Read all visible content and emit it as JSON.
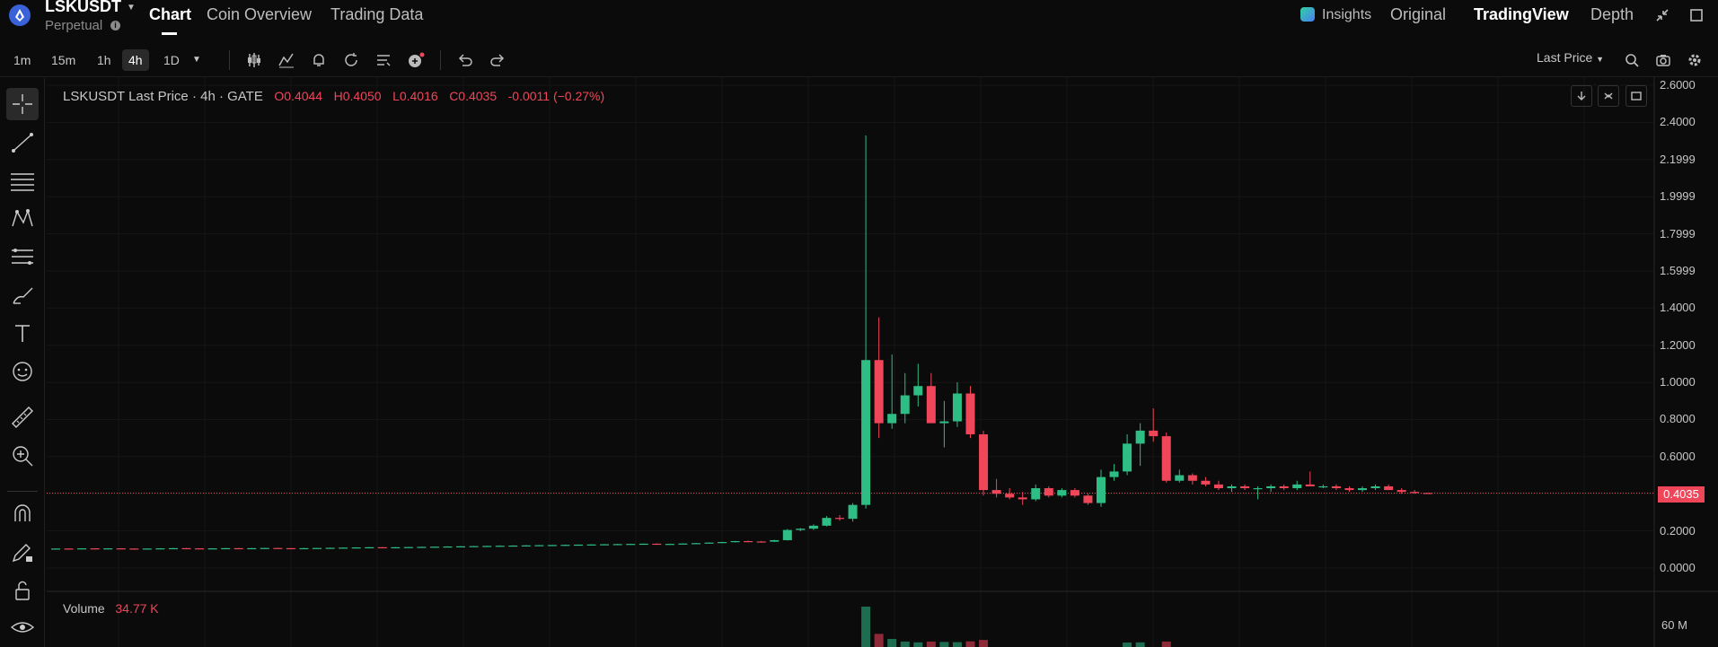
{
  "header": {
    "symbol": "LSKUSDT",
    "subtitle": "Perpetual",
    "tabs": [
      {
        "label": "Chart",
        "active": true
      },
      {
        "label": "Coin Overview",
        "active": false
      },
      {
        "label": "Trading Data",
        "active": false
      }
    ],
    "right_tabs": [
      {
        "label": "Insights",
        "active": false
      },
      {
        "label": "Original",
        "active": false
      },
      {
        "label": "TradingView",
        "active": true
      },
      {
        "label": "Depth",
        "active": false
      }
    ]
  },
  "toolbar": {
    "timeframes": [
      {
        "label": "1m",
        "active": false
      },
      {
        "label": "15m",
        "active": false
      },
      {
        "label": "1h",
        "active": false
      },
      {
        "label": "4h",
        "active": true
      },
      {
        "label": "1D",
        "active": false
      }
    ],
    "price_type": "Last Price"
  },
  "legend": {
    "title": "LSKUSDT Last Price · 4h · GATE",
    "open": "O0.4044",
    "high": "H0.4050",
    "low": "L0.4016",
    "close": "C0.4035",
    "change": "-0.0011 (−0.27%)"
  },
  "price_axis": [
    "2.6000",
    "2.4000",
    "2.1999",
    "1.9999",
    "1.7999",
    "1.5999",
    "1.4000",
    "1.2000",
    "1.0000",
    "0.8000",
    "0.6000",
    "0.4000",
    "0.2000",
    "0.0000"
  ],
  "current_price": "0.4035",
  "volume": {
    "label": "Volume",
    "value": "34.77 K",
    "axis_label": "60 M"
  },
  "colors": {
    "up": "#2ebd85",
    "down": "#f0465a",
    "background": "#0b0b0b"
  },
  "chart_data": {
    "type": "candlestick",
    "title": "LSKUSDT Last Price · 4h · GATE",
    "ylim": [
      0.0,
      2.6
    ],
    "grid": true,
    "candles": [
      {
        "o": 0.104,
        "h": 0.106,
        "l": 0.102,
        "c": 0.105
      },
      {
        "o": 0.105,
        "h": 0.106,
        "l": 0.103,
        "c": 0.104
      },
      {
        "o": 0.104,
        "h": 0.107,
        "l": 0.103,
        "c": 0.106
      },
      {
        "o": 0.106,
        "h": 0.107,
        "l": 0.104,
        "c": 0.105
      },
      {
        "o": 0.105,
        "h": 0.107,
        "l": 0.104,
        "c": 0.106
      },
      {
        "o": 0.106,
        "h": 0.107,
        "l": 0.104,
        "c": 0.105
      },
      {
        "o": 0.105,
        "h": 0.106,
        "l": 0.103,
        "c": 0.104
      },
      {
        "o": 0.104,
        "h": 0.106,
        "l": 0.103,
        "c": 0.105
      },
      {
        "o": 0.105,
        "h": 0.107,
        "l": 0.104,
        "c": 0.106
      },
      {
        "o": 0.106,
        "h": 0.108,
        "l": 0.105,
        "c": 0.107
      },
      {
        "o": 0.107,
        "h": 0.108,
        "l": 0.105,
        "c": 0.106
      },
      {
        "o": 0.106,
        "h": 0.107,
        "l": 0.104,
        "c": 0.105
      },
      {
        "o": 0.105,
        "h": 0.107,
        "l": 0.104,
        "c": 0.106
      },
      {
        "o": 0.106,
        "h": 0.108,
        "l": 0.105,
        "c": 0.107
      },
      {
        "o": 0.107,
        "h": 0.108,
        "l": 0.105,
        "c": 0.106
      },
      {
        "o": 0.106,
        "h": 0.108,
        "l": 0.105,
        "c": 0.107
      },
      {
        "o": 0.107,
        "h": 0.109,
        "l": 0.106,
        "c": 0.108
      },
      {
        "o": 0.108,
        "h": 0.109,
        "l": 0.106,
        "c": 0.107
      },
      {
        "o": 0.107,
        "h": 0.108,
        "l": 0.105,
        "c": 0.106
      },
      {
        "o": 0.106,
        "h": 0.108,
        "l": 0.105,
        "c": 0.107
      },
      {
        "o": 0.107,
        "h": 0.109,
        "l": 0.106,
        "c": 0.108
      },
      {
        "o": 0.108,
        "h": 0.11,
        "l": 0.107,
        "c": 0.109
      },
      {
        "o": 0.109,
        "h": 0.111,
        "l": 0.108,
        "c": 0.11
      },
      {
        "o": 0.11,
        "h": 0.112,
        "l": 0.108,
        "c": 0.111
      },
      {
        "o": 0.111,
        "h": 0.113,
        "l": 0.109,
        "c": 0.112
      },
      {
        "o": 0.112,
        "h": 0.113,
        "l": 0.11,
        "c": 0.111
      },
      {
        "o": 0.111,
        "h": 0.113,
        "l": 0.11,
        "c": 0.112
      },
      {
        "o": 0.112,
        "h": 0.114,
        "l": 0.111,
        "c": 0.113
      },
      {
        "o": 0.113,
        "h": 0.115,
        "l": 0.112,
        "c": 0.114
      },
      {
        "o": 0.114,
        "h": 0.116,
        "l": 0.112,
        "c": 0.115
      },
      {
        "o": 0.115,
        "h": 0.117,
        "l": 0.113,
        "c": 0.116
      },
      {
        "o": 0.116,
        "h": 0.118,
        "l": 0.114,
        "c": 0.117
      },
      {
        "o": 0.117,
        "h": 0.119,
        "l": 0.115,
        "c": 0.118
      },
      {
        "o": 0.118,
        "h": 0.12,
        "l": 0.116,
        "c": 0.119
      },
      {
        "o": 0.119,
        "h": 0.122,
        "l": 0.117,
        "c": 0.12
      },
      {
        "o": 0.12,
        "h": 0.122,
        "l": 0.118,
        "c": 0.121
      },
      {
        "o": 0.121,
        "h": 0.123,
        "l": 0.119,
        "c": 0.122
      },
      {
        "o": 0.122,
        "h": 0.124,
        "l": 0.12,
        "c": 0.123
      },
      {
        "o": 0.123,
        "h": 0.125,
        "l": 0.121,
        "c": 0.124
      },
      {
        "o": 0.124,
        "h": 0.126,
        "l": 0.122,
        "c": 0.125
      },
      {
        "o": 0.125,
        "h": 0.127,
        "l": 0.123,
        "c": 0.126
      },
      {
        "o": 0.126,
        "h": 0.128,
        "l": 0.124,
        "c": 0.127
      },
      {
        "o": 0.127,
        "h": 0.129,
        "l": 0.125,
        "c": 0.128
      },
      {
        "o": 0.128,
        "h": 0.13,
        "l": 0.126,
        "c": 0.129
      },
      {
        "o": 0.129,
        "h": 0.131,
        "l": 0.127,
        "c": 0.13
      },
      {
        "o": 0.13,
        "h": 0.132,
        "l": 0.128,
        "c": 0.131
      },
      {
        "o": 0.131,
        "h": 0.133,
        "l": 0.127,
        "c": 0.128
      },
      {
        "o": 0.128,
        "h": 0.131,
        "l": 0.126,
        "c": 0.13
      },
      {
        "o": 0.13,
        "h": 0.133,
        "l": 0.128,
        "c": 0.132
      },
      {
        "o": 0.132,
        "h": 0.135,
        "l": 0.13,
        "c": 0.134
      },
      {
        "o": 0.134,
        "h": 0.138,
        "l": 0.132,
        "c": 0.137
      },
      {
        "o": 0.137,
        "h": 0.141,
        "l": 0.134,
        "c": 0.14
      },
      {
        "o": 0.14,
        "h": 0.146,
        "l": 0.138,
        "c": 0.145
      },
      {
        "o": 0.145,
        "h": 0.148,
        "l": 0.141,
        "c": 0.143
      },
      {
        "o": 0.143,
        "h": 0.146,
        "l": 0.14,
        "c": 0.142
      },
      {
        "o": 0.142,
        "h": 0.152,
        "l": 0.14,
        "c": 0.15
      },
      {
        "o": 0.15,
        "h": 0.21,
        "l": 0.148,
        "c": 0.205
      },
      {
        "o": 0.205,
        "h": 0.215,
        "l": 0.198,
        "c": 0.212
      },
      {
        "o": 0.212,
        "h": 0.235,
        "l": 0.205,
        "c": 0.228
      },
      {
        "o": 0.228,
        "h": 0.28,
        "l": 0.224,
        "c": 0.27
      },
      {
        "o": 0.27,
        "h": 0.285,
        "l": 0.255,
        "c": 0.265
      },
      {
        "o": 0.265,
        "h": 0.35,
        "l": 0.25,
        "c": 0.34
      },
      {
        "o": 0.34,
        "h": 2.33,
        "l": 0.32,
        "c": 1.12
      },
      {
        "o": 1.12,
        "h": 1.35,
        "l": 0.7,
        "c": 0.78
      },
      {
        "o": 0.78,
        "h": 1.15,
        "l": 0.75,
        "c": 0.83
      },
      {
        "o": 0.83,
        "h": 1.05,
        "l": 0.78,
        "c": 0.93
      },
      {
        "o": 0.93,
        "h": 1.1,
        "l": 0.87,
        "c": 0.98
      },
      {
        "o": 0.98,
        "h": 1.05,
        "l": 0.78,
        "c": 0.78
      },
      {
        "o": 0.78,
        "h": 0.9,
        "l": 0.65,
        "c": 0.79
      },
      {
        "o": 0.79,
        "h": 1.0,
        "l": 0.76,
        "c": 0.94
      },
      {
        "o": 0.94,
        "h": 0.98,
        "l": 0.7,
        "c": 0.72
      },
      {
        "o": 0.72,
        "h": 0.74,
        "l": 0.39,
        "c": 0.42
      },
      {
        "o": 0.42,
        "h": 0.48,
        "l": 0.38,
        "c": 0.4
      },
      {
        "o": 0.4,
        "h": 0.43,
        "l": 0.37,
        "c": 0.38
      },
      {
        "o": 0.38,
        "h": 0.41,
        "l": 0.34,
        "c": 0.37
      },
      {
        "o": 0.37,
        "h": 0.45,
        "l": 0.36,
        "c": 0.43
      },
      {
        "o": 0.43,
        "h": 0.44,
        "l": 0.38,
        "c": 0.39
      },
      {
        "o": 0.39,
        "h": 0.43,
        "l": 0.38,
        "c": 0.42
      },
      {
        "o": 0.42,
        "h": 0.43,
        "l": 0.38,
        "c": 0.39
      },
      {
        "o": 0.39,
        "h": 0.4,
        "l": 0.34,
        "c": 0.35
      },
      {
        "o": 0.35,
        "h": 0.53,
        "l": 0.33,
        "c": 0.49
      },
      {
        "o": 0.49,
        "h": 0.56,
        "l": 0.47,
        "c": 0.52
      },
      {
        "o": 0.52,
        "h": 0.72,
        "l": 0.5,
        "c": 0.67
      },
      {
        "o": 0.67,
        "h": 0.78,
        "l": 0.55,
        "c": 0.74
      },
      {
        "o": 0.74,
        "h": 0.86,
        "l": 0.68,
        "c": 0.71
      },
      {
        "o": 0.71,
        "h": 0.73,
        "l": 0.46,
        "c": 0.47
      },
      {
        "o": 0.47,
        "h": 0.53,
        "l": 0.46,
        "c": 0.5
      },
      {
        "o": 0.5,
        "h": 0.51,
        "l": 0.45,
        "c": 0.47
      },
      {
        "o": 0.47,
        "h": 0.49,
        "l": 0.44,
        "c": 0.45
      },
      {
        "o": 0.45,
        "h": 0.47,
        "l": 0.42,
        "c": 0.43
      },
      {
        "o": 0.43,
        "h": 0.45,
        "l": 0.41,
        "c": 0.44
      },
      {
        "o": 0.44,
        "h": 0.45,
        "l": 0.42,
        "c": 0.43
      },
      {
        "o": 0.43,
        "h": 0.44,
        "l": 0.37,
        "c": 0.43
      },
      {
        "o": 0.43,
        "h": 0.45,
        "l": 0.41,
        "c": 0.44
      },
      {
        "o": 0.44,
        "h": 0.45,
        "l": 0.42,
        "c": 0.43
      },
      {
        "o": 0.43,
        "h": 0.47,
        "l": 0.42,
        "c": 0.45
      },
      {
        "o": 0.45,
        "h": 0.52,
        "l": 0.44,
        "c": 0.44
      },
      {
        "o": 0.44,
        "h": 0.45,
        "l": 0.43,
        "c": 0.44
      },
      {
        "o": 0.44,
        "h": 0.45,
        "l": 0.42,
        "c": 0.43
      },
      {
        "o": 0.43,
        "h": 0.44,
        "l": 0.41,
        "c": 0.42
      },
      {
        "o": 0.42,
        "h": 0.44,
        "l": 0.41,
        "c": 0.43
      },
      {
        "o": 0.43,
        "h": 0.45,
        "l": 0.42,
        "c": 0.44
      },
      {
        "o": 0.44,
        "h": 0.45,
        "l": 0.42,
        "c": 0.42
      },
      {
        "o": 0.42,
        "h": 0.43,
        "l": 0.4,
        "c": 0.41
      },
      {
        "o": 0.41,
        "h": 0.42,
        "l": 0.4,
        "c": 0.405
      },
      {
        "o": 0.4044,
        "h": 0.405,
        "l": 0.4016,
        "c": 0.4035
      }
    ],
    "volume_max": 60
  }
}
